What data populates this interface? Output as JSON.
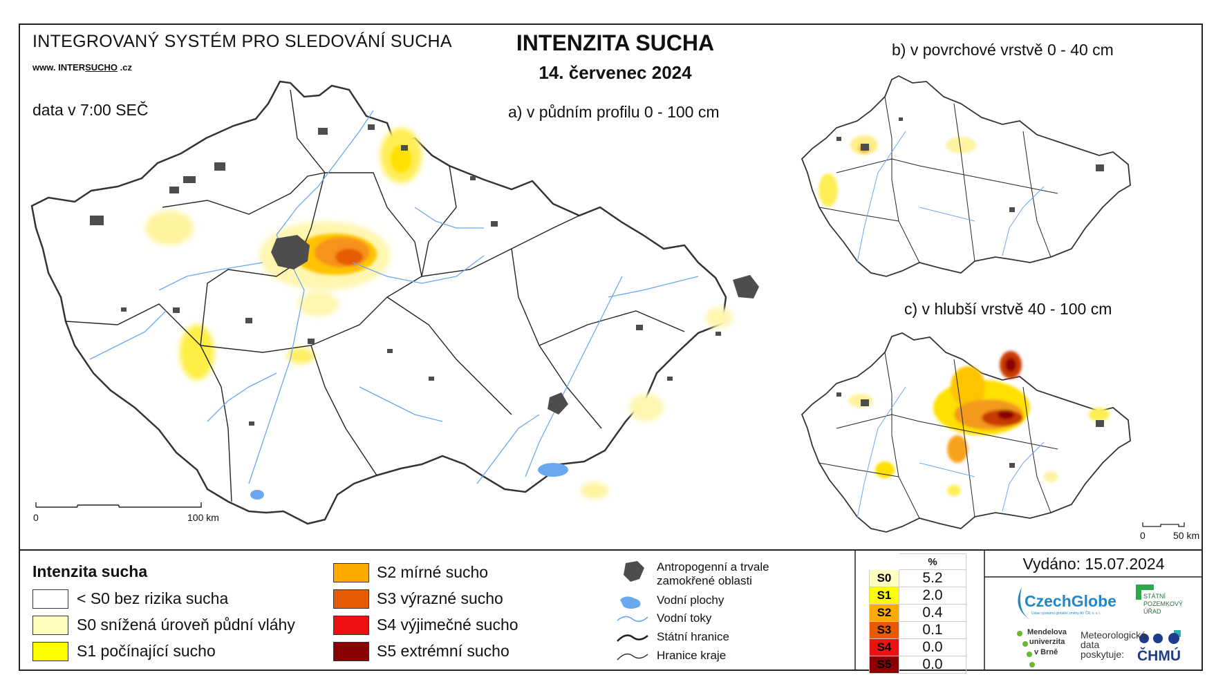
{
  "header": {
    "system_title": "INTEGROVANÝ SYSTÉM PRO SLEDOVÁNÍ SUCHA",
    "url_prefix": "www. INTER",
    "url_mid": "SUCHO",
    "url_suffix": " .cz",
    "data_time": "data v 7:00 SEČ",
    "main_title": "INTENZITA SUCHA",
    "date": "14. červenec 2024"
  },
  "maps": {
    "a_title": "a) v půdním profilu 0 - 100 cm",
    "b_title": "b) v povrchové vrstvě 0 - 40 cm",
    "c_title": "c) v hlubší vrstvě 40 - 100 cm",
    "scale_main": {
      "zero": "0",
      "end": "100 km"
    },
    "scale_small": {
      "zero": "0",
      "end": "50 km"
    }
  },
  "legend": {
    "title": "Intenzita sucha",
    "classes": [
      {
        "label": "< S0 bez rizika sucha",
        "color": "#ffffff"
      },
      {
        "label": "S0 snížená úroveň půdní vláhy",
        "color": "#ffffc0"
      },
      {
        "label": "S1 počínající sucho",
        "color": "#ffff00"
      },
      {
        "label": "S2 mírné sucho",
        "color": "#ffaa00"
      },
      {
        "label": "S3 výrazné sucho",
        "color": "#e65a00"
      },
      {
        "label": "S4 výjimečné sucho",
        "color": "#ee1111"
      },
      {
        "label": "S5 extrémní sucho",
        "color": "#8b0000"
      }
    ]
  },
  "symbols": {
    "anthropogenic": "Antropogenní a trvale zamokřené oblasti",
    "water_bodies": "Vodní plochy",
    "water_streams": "Vodní toky",
    "state_border": "Státní hranice",
    "region_border": "Hranice kraje"
  },
  "stats": {
    "header": "%",
    "rows": [
      {
        "cls": "S0",
        "value": "5.2",
        "color": "#ffffc0",
        "text_color": "#000000"
      },
      {
        "cls": "S1",
        "value": "2.0",
        "color": "#ffff00",
        "text_color": "#000000"
      },
      {
        "cls": "S2",
        "value": "0.4",
        "color": "#ffaa00",
        "text_color": "#000000"
      },
      {
        "cls": "S3",
        "value": "0.1",
        "color": "#e65a00",
        "text_color": "#000000"
      },
      {
        "cls": "S4",
        "value": "0.0",
        "color": "#ee1111",
        "text_color": "#000000"
      },
      {
        "cls": "S5",
        "value": "0.0",
        "color": "#8b0000",
        "text_color": "#000000"
      }
    ]
  },
  "issued": "Vydáno: 15.07.2024",
  "logos": {
    "czechglobe": "CzechGlobe",
    "czechglobe_sub": "Ústav výzkumu globální změny AV ČR, v. v. i.",
    "spu": "STÁTNÍ POZEMKOVÝ ÚŘAD",
    "mendelu_1": "Mendelova",
    "mendelu_2": "univerzita",
    "mendelu_3": "v Brně",
    "meteo_1": "Meteorologická",
    "meteo_2": "data",
    "meteo_3": "poskytuje:",
    "chmu": "ČHMÚ"
  },
  "colors": {
    "anthropogenic": "#555555",
    "water": "#69a7ee",
    "border": "#222222"
  }
}
